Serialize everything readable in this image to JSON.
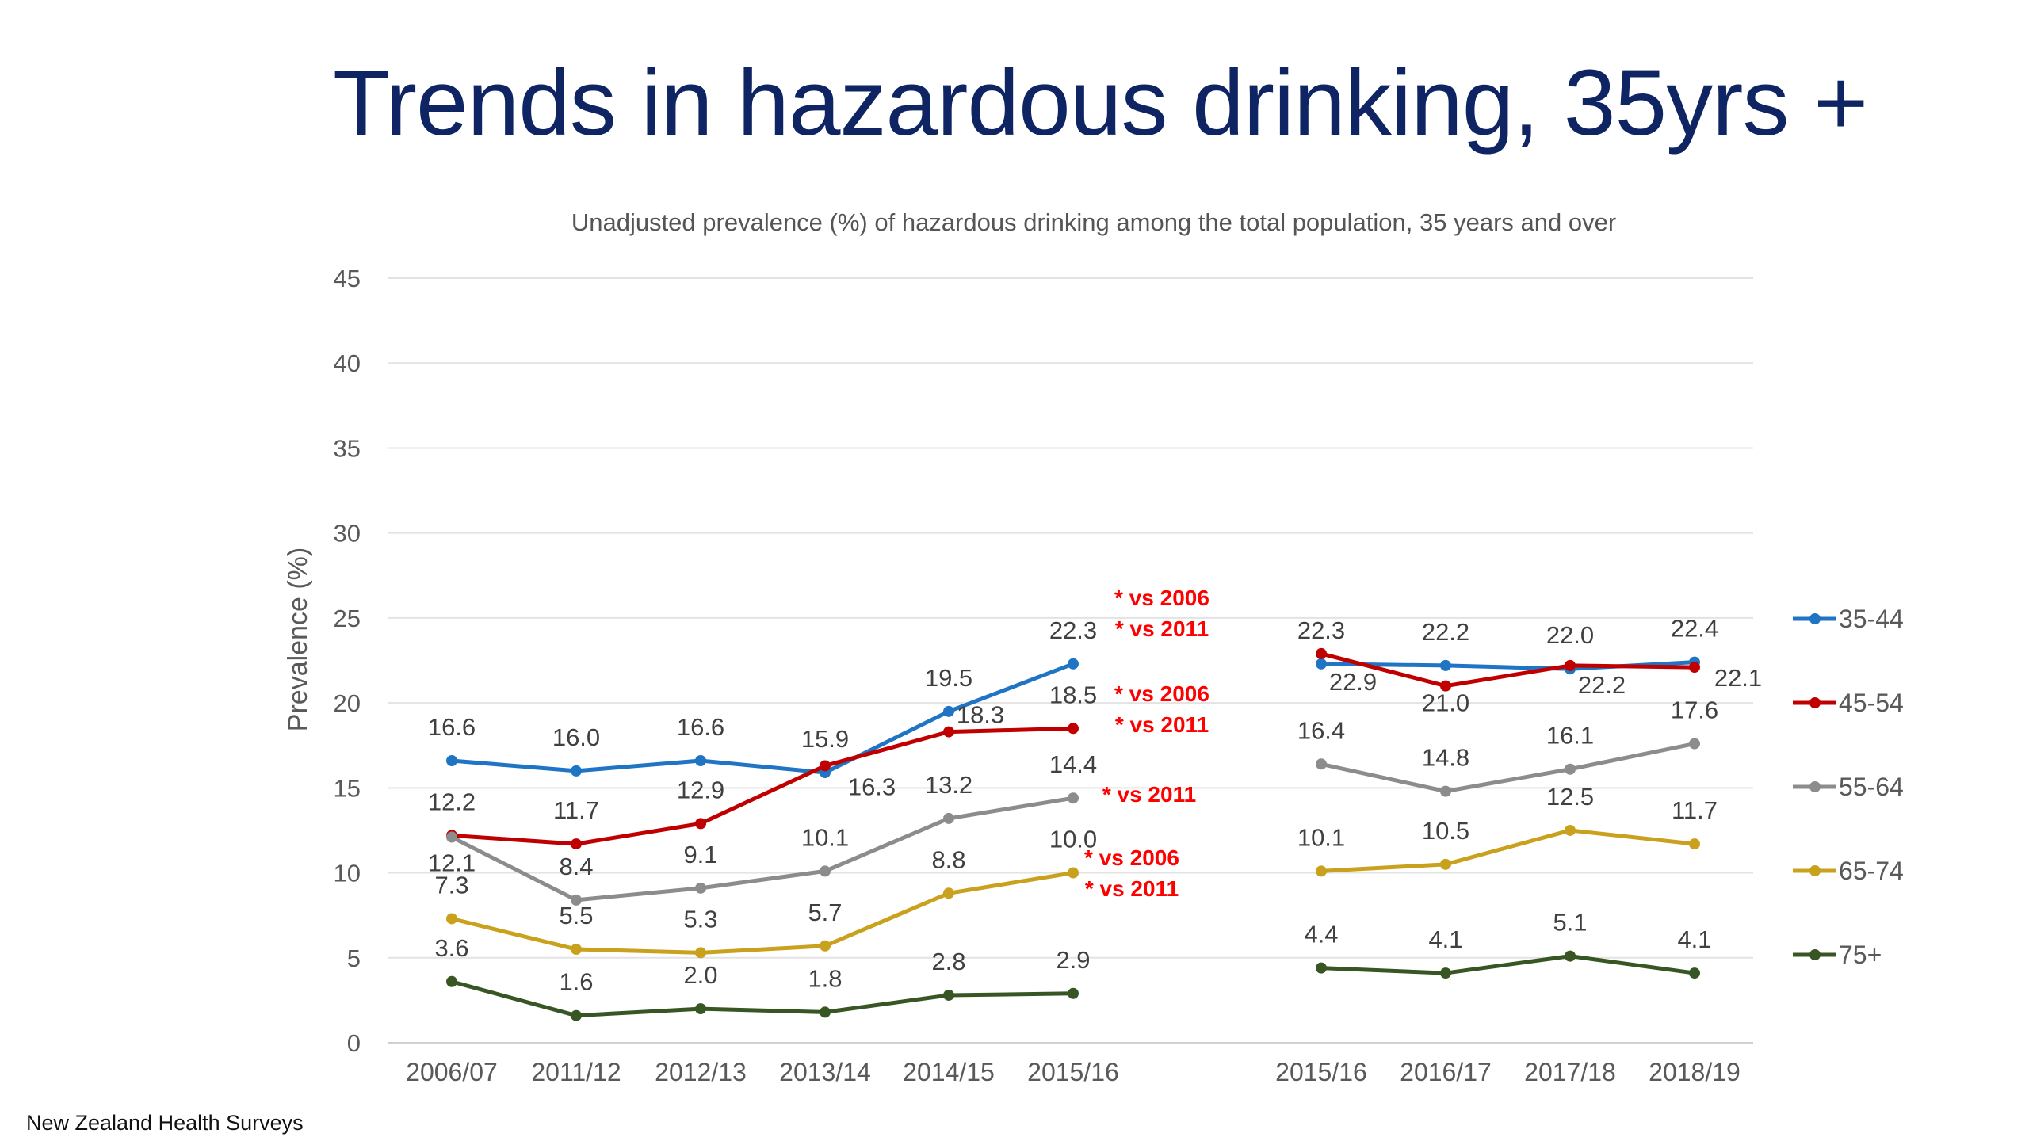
{
  "title": "Trends in hazardous drinking, 35yrs +",
  "source": "New Zealand Health Surveys",
  "chart_data": {
    "type": "line",
    "title": "Unadjusted prevalence (%) of hazardous drinking among the total population, 35 years and over",
    "xlabel": "",
    "ylabel": "Prevalence (%)",
    "ylim": [
      0,
      45
    ],
    "yticks": [
      0,
      5,
      10,
      15,
      20,
      25,
      30,
      35,
      40,
      45
    ],
    "grid": true,
    "legend_position": "right",
    "groups": [
      {
        "categories": [
          "2006/07",
          "2011/12",
          "2012/13",
          "2013/14",
          "2014/15",
          "2015/16"
        ]
      },
      {
        "categories": [
          "2015/16",
          "2016/17",
          "2017/18",
          "2018/19"
        ]
      }
    ],
    "series": [
      {
        "name": "35-44",
        "color": "#1f74c4",
        "values": [
          [
            16.6,
            16.0,
            16.6,
            15.9,
            19.5,
            22.3
          ],
          [
            22.3,
            22.2,
            22.0,
            22.4
          ]
        ]
      },
      {
        "name": "45-54",
        "color": "#c00000",
        "values": [
          [
            12.2,
            11.7,
            12.9,
            16.3,
            18.3,
            18.5
          ],
          [
            22.9,
            21.0,
            22.2,
            22.1
          ]
        ]
      },
      {
        "name": "55-64",
        "color": "#8c8c8c",
        "values": [
          [
            12.1,
            8.4,
            9.1,
            10.1,
            13.2,
            14.4
          ],
          [
            16.4,
            14.8,
            16.1,
            17.6
          ]
        ]
      },
      {
        "name": "65-74",
        "color": "#c9a11c",
        "values": [
          [
            7.3,
            5.5,
            5.3,
            5.7,
            8.8,
            10.0
          ],
          [
            10.1,
            10.5,
            12.5,
            11.7
          ]
        ]
      },
      {
        "name": "75+",
        "color": "#375623",
        "values": [
          [
            3.6,
            1.6,
            2.0,
            1.8,
            2.8,
            2.9
          ],
          [
            4.4,
            4.1,
            5.1,
            4.1
          ]
        ]
      }
    ],
    "annotations": [
      {
        "series": "35-44",
        "text": [
          "* vs 2006",
          "* vs 2011"
        ],
        "color": "#ff0000"
      },
      {
        "series": "45-54",
        "text": [
          "* vs 2006",
          "* vs 2011"
        ],
        "color": "#ff0000"
      },
      {
        "series": "55-64",
        "text": [
          "* vs 2011"
        ],
        "color": "#ff0000"
      },
      {
        "series": "65-74",
        "text": [
          "* vs 2006",
          "* vs 2011"
        ],
        "color": "#ff0000"
      }
    ]
  }
}
